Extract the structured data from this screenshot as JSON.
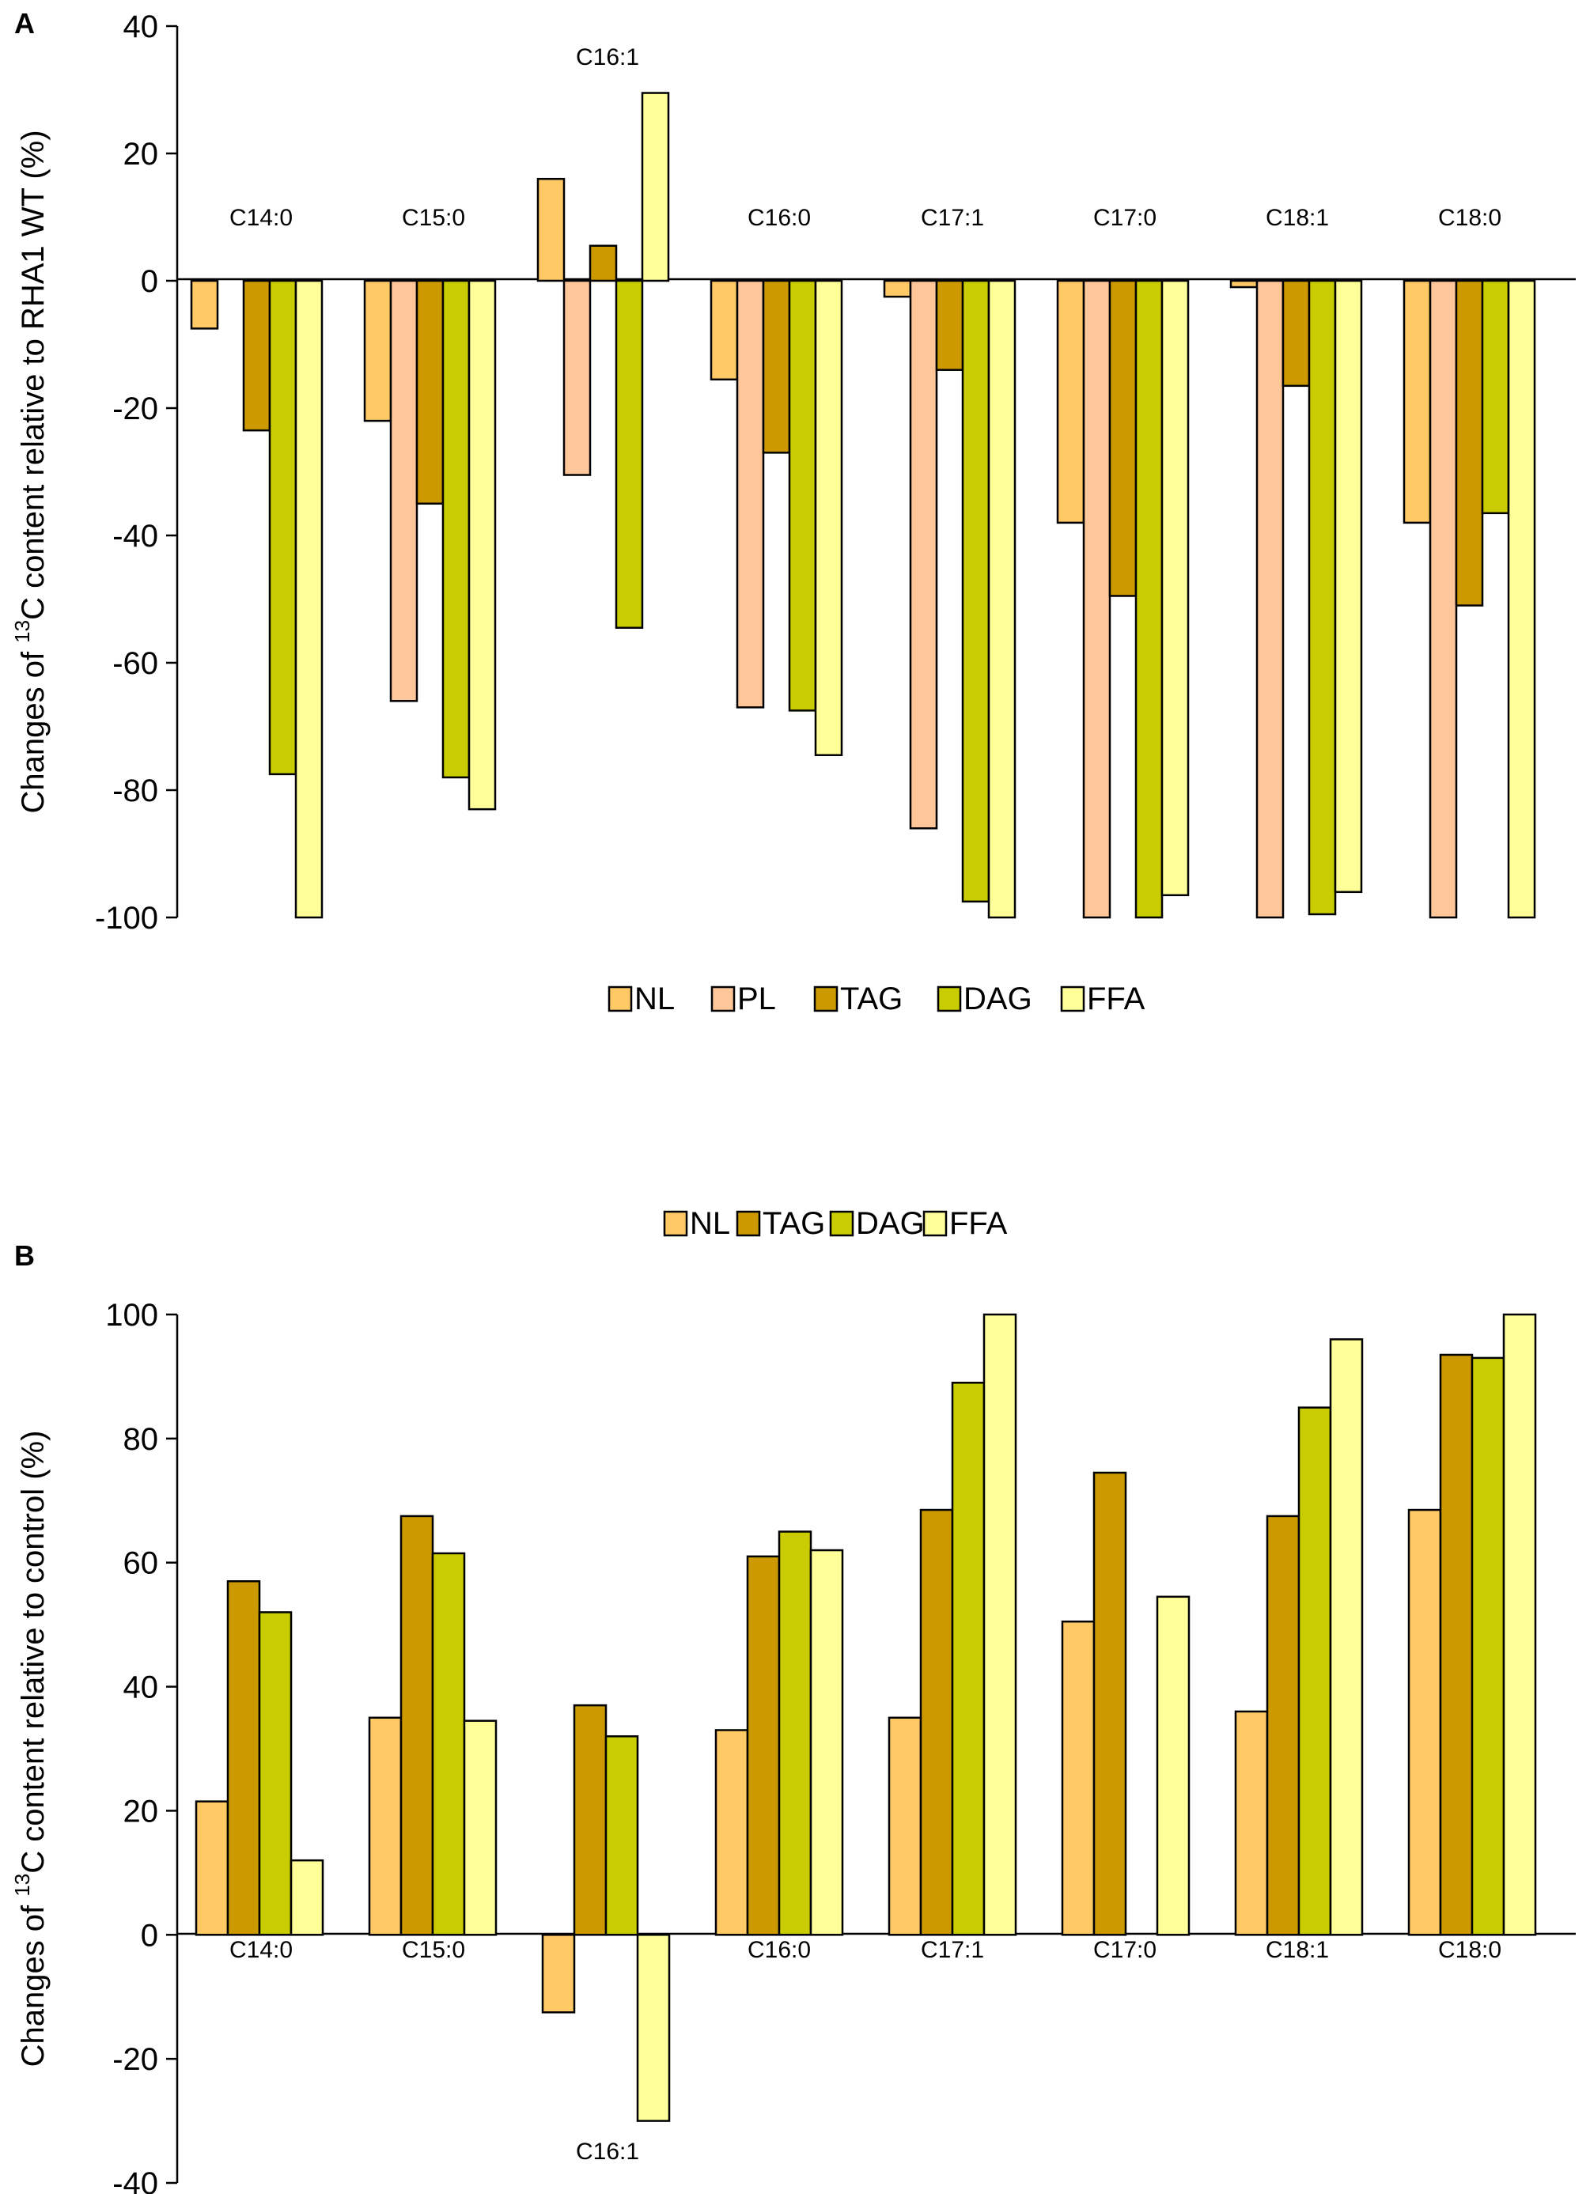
{
  "colors": {
    "NL": "#FFC966",
    "PL": "#FFC69A",
    "TAG": "#CC9900",
    "DAG": "#C9CC00",
    "FFA": "#FFFF99"
  },
  "chart_data": [
    {
      "type": "bar",
      "panel_label": "A",
      "ylabel_parts": {
        "pre": "Changes of ",
        "sup": "13",
        "post": "C content relative to RHA1 WT (%)"
      },
      "ylim": [
        -100,
        40
      ],
      "yticks": [
        40,
        20,
        0,
        -20,
        -40,
        -60,
        -80,
        -100
      ],
      "legend": [
        "NL",
        "PL",
        "TAG",
        "DAG",
        "FFA"
      ],
      "categories": [
        "C14:0",
        "C15:0",
        "C16:1",
        "C16:0",
        "C17:1",
        "C17:0",
        "C18:1",
        "C18:0"
      ],
      "series": [
        {
          "name": "NL",
          "values": [
            -7.5,
            -22,
            16,
            -15.5,
            -2.5,
            -38,
            -1,
            -38
          ]
        },
        {
          "name": "PL",
          "values": [
            null,
            -66,
            -30.5,
            -67,
            -86,
            -100,
            -100,
            -100
          ]
        },
        {
          "name": "TAG",
          "values": [
            -23.5,
            -35,
            5.5,
            -27,
            -14,
            -49.5,
            -16.5,
            -51
          ]
        },
        {
          "name": "DAG",
          "values": [
            -77.5,
            -78,
            -54.5,
            -67.5,
            -97.5,
            -100,
            -99.5,
            -36.5
          ]
        },
        {
          "name": "FFA",
          "values": [
            -100,
            -83,
            29.5,
            -74.5,
            -100,
            -96.5,
            -96,
            -100
          ]
        }
      ]
    },
    {
      "type": "bar",
      "panel_label": "B",
      "ylabel_parts": {
        "pre": "Changes of ",
        "sup": "13",
        "post": "C content relative to control (%)"
      },
      "ylim": [
        -40,
        100
      ],
      "yticks": [
        100,
        80,
        60,
        40,
        20,
        0,
        -20,
        -40
      ],
      "legend": [
        "NL",
        "TAG",
        "DAG",
        "FFA"
      ],
      "categories": [
        "C14:0",
        "C15:0",
        "C16:1",
        "C16:0",
        "C17:1",
        "C17:0",
        "C18:1",
        "C18:0"
      ],
      "series": [
        {
          "name": "NL",
          "values": [
            21.5,
            35,
            -12.5,
            33,
            35,
            50.5,
            36,
            68.5
          ]
        },
        {
          "name": "TAG",
          "values": [
            57,
            67.5,
            37,
            61,
            68.5,
            74.5,
            67.5,
            93.5
          ]
        },
        {
          "name": "DAG",
          "values": [
            52,
            61.5,
            32,
            65,
            89,
            null,
            85,
            93
          ]
        },
        {
          "name": "FFA",
          "values": [
            12,
            34.5,
            -30,
            62,
            100,
            54.5,
            96,
            100
          ]
        }
      ]
    }
  ]
}
